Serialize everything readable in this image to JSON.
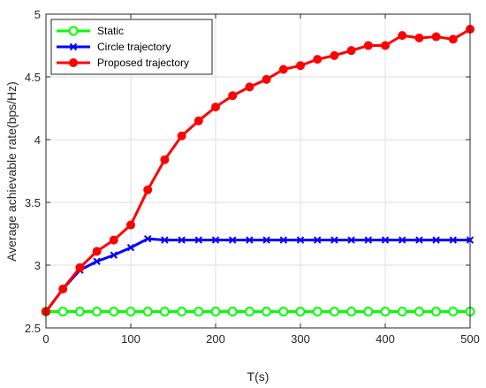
{
  "chart_data": {
    "type": "line",
    "xlabel": "T(s)",
    "ylabel": "Average achievable rate(bps/Hz)",
    "xlim": [
      0,
      500
    ],
    "ylim": [
      2.5,
      5
    ],
    "x_ticks": [
      "0",
      "100",
      "200",
      "300",
      "400",
      "500"
    ],
    "y_ticks": [
      "2.5",
      "3",
      "3.5",
      "4",
      "4.5",
      "5"
    ],
    "grid": true,
    "legend_position": "top-left",
    "x": [
      0,
      20,
      40,
      60,
      80,
      100,
      120,
      140,
      160,
      180,
      200,
      220,
      240,
      260,
      280,
      300,
      320,
      340,
      360,
      380,
      400,
      420,
      440,
      460,
      480,
      500
    ],
    "series": [
      {
        "name": "Static",
        "color": "#00ff00",
        "marker": "circle",
        "values": [
          2.63,
          2.63,
          2.63,
          2.63,
          2.63,
          2.63,
          2.63,
          2.63,
          2.63,
          2.63,
          2.63,
          2.63,
          2.63,
          2.63,
          2.63,
          2.63,
          2.63,
          2.63,
          2.63,
          2.63,
          2.63,
          2.63,
          2.63,
          2.63,
          2.63,
          2.63
        ]
      },
      {
        "name": "Circle trajectory",
        "color": "#0000ff",
        "marker": "x",
        "values": [
          2.63,
          2.81,
          2.96,
          3.03,
          3.08,
          3.14,
          3.21,
          3.2,
          3.2,
          3.2,
          3.2,
          3.2,
          3.2,
          3.2,
          3.2,
          3.2,
          3.2,
          3.2,
          3.2,
          3.2,
          3.2,
          3.2,
          3.2,
          3.2,
          3.2,
          3.2
        ]
      },
      {
        "name": "Proposed trajectory",
        "color": "#ff0000",
        "marker": "filled-circle",
        "values": [
          2.63,
          2.81,
          2.98,
          3.11,
          3.2,
          3.32,
          3.6,
          3.84,
          4.03,
          4.15,
          4.26,
          4.35,
          4.42,
          4.48,
          4.56,
          4.59,
          4.64,
          4.67,
          4.71,
          4.75,
          4.75,
          4.83,
          4.81,
          4.82,
          4.8,
          4.88
        ]
      }
    ]
  }
}
